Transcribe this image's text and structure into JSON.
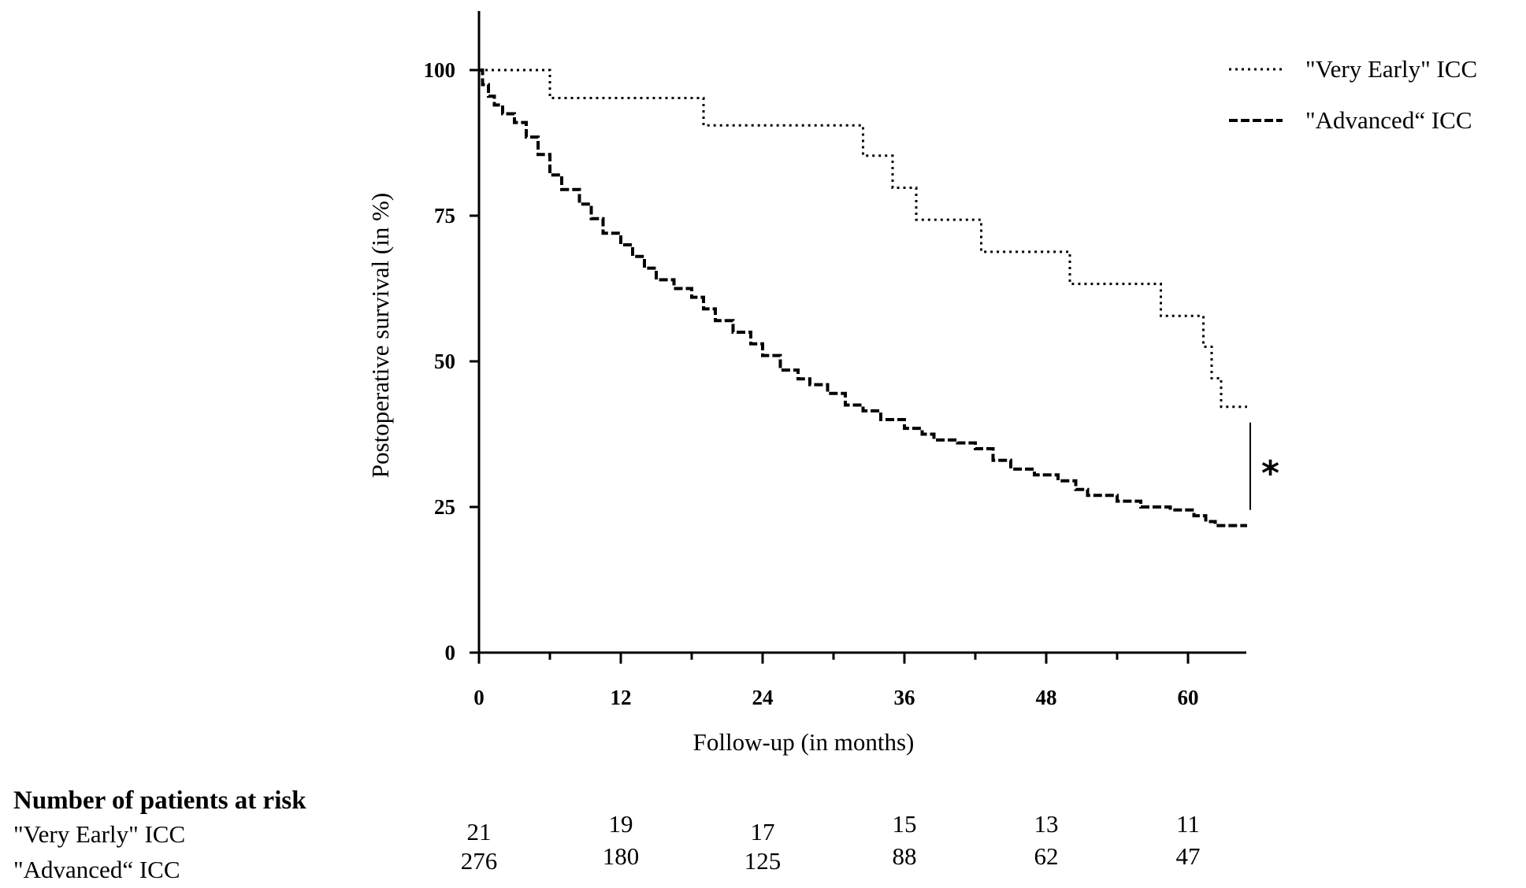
{
  "chart_data": {
    "type": "line",
    "subtype": "kaplan-meier",
    "title": "",
    "xlabel": "Follow-up (in months)",
    "ylabel": "Postoperative survival  (in %)",
    "xlim": [
      0,
      65
    ],
    "ylim": [
      0,
      110
    ],
    "xticks": [
      0,
      12,
      24,
      36,
      48,
      60
    ],
    "yticks": [
      0,
      25,
      50,
      75,
      100
    ],
    "legend_position": "top-right",
    "series": [
      {
        "name": "\"Very Early\"  ICC",
        "style": "dotted",
        "steps": [
          [
            0,
            100
          ],
          [
            6,
            95.2
          ],
          [
            19,
            90.5
          ],
          [
            32.5,
            85.3
          ],
          [
            35,
            79.8
          ],
          [
            37,
            74.3
          ],
          [
            42.5,
            68.8
          ],
          [
            50,
            63.3
          ],
          [
            57.7,
            57.8
          ],
          [
            61.3,
            52.5
          ],
          [
            62,
            47.1
          ],
          [
            62.8,
            42.2
          ],
          [
            65,
            42.2
          ]
        ]
      },
      {
        "name": "\"Advanced“   ICC",
        "style": "dashed",
        "steps": [
          [
            0,
            100
          ],
          [
            0.3,
            97.5
          ],
          [
            0.8,
            95.5
          ],
          [
            1.3,
            94
          ],
          [
            2,
            92.5
          ],
          [
            3,
            91
          ],
          [
            4,
            88.5
          ],
          [
            5,
            85.5
          ],
          [
            6,
            82
          ],
          [
            7,
            79.5
          ],
          [
            8.5,
            77
          ],
          [
            9.5,
            74.5
          ],
          [
            10.5,
            72
          ],
          [
            12,
            70
          ],
          [
            13,
            68
          ],
          [
            14,
            66
          ],
          [
            15,
            64
          ],
          [
            16.5,
            62.5
          ],
          [
            18,
            61
          ],
          [
            19,
            59
          ],
          [
            20,
            57
          ],
          [
            21.5,
            55
          ],
          [
            23,
            53
          ],
          [
            24,
            51
          ],
          [
            25.5,
            48.5
          ],
          [
            27,
            47
          ],
          [
            28,
            46
          ],
          [
            29.5,
            44.5
          ],
          [
            31,
            42.5
          ],
          [
            32.5,
            41.5
          ],
          [
            34,
            40
          ],
          [
            36,
            38.5
          ],
          [
            37.5,
            37.5
          ],
          [
            38.5,
            36.5
          ],
          [
            40.5,
            36
          ],
          [
            42,
            35
          ],
          [
            43.5,
            33
          ],
          [
            45,
            31.5
          ],
          [
            47,
            30.5
          ],
          [
            49,
            29.5
          ],
          [
            50.5,
            28
          ],
          [
            51.5,
            27
          ],
          [
            54,
            26
          ],
          [
            56,
            25
          ],
          [
            58.5,
            24.5
          ],
          [
            60.5,
            23.5
          ],
          [
            61.5,
            22.5
          ],
          [
            62.3,
            21.8
          ],
          [
            65,
            21.8
          ]
        ]
      }
    ],
    "annotations": [
      {
        "text": "*",
        "x": 65,
        "y_from": 24.5,
        "y_to": 39.5
      }
    ],
    "risk_table": {
      "title": "Number of patients at risk",
      "timepoints": [
        0,
        12,
        24,
        36,
        48,
        60
      ],
      "rows": [
        {
          "label": "\"Very Early\" ICC",
          "values": [
            "21",
            "19",
            "17",
            "15",
            "13",
            "11"
          ]
        },
        {
          "label": "\"Advanced“ ICC",
          "values": [
            "276",
            "180",
            "125",
            "88",
            "62",
            "47"
          ]
        }
      ]
    }
  }
}
